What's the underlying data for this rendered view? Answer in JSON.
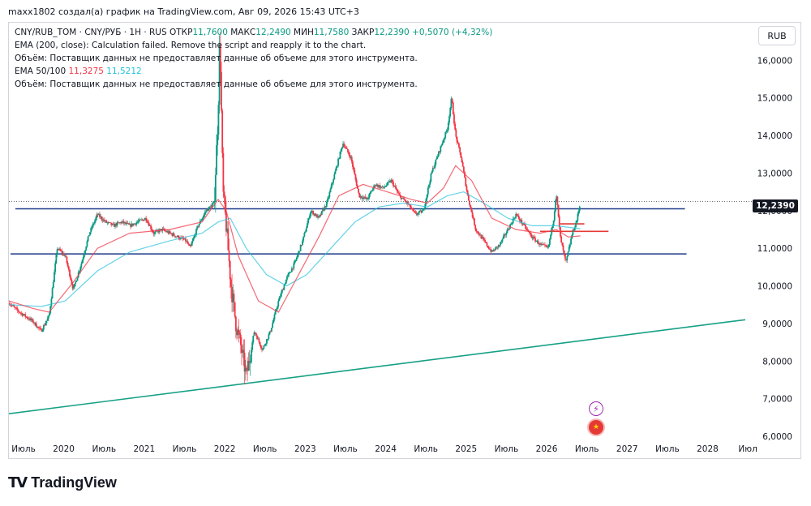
{
  "header": {
    "caption": "maxx1802 создал(а) график на TradingView.com, Авг 09, 2026 15:43 UTC+3"
  },
  "legend": {
    "symbol": "CNY/RUB_TOM · CNY/РУБ · 1H · RUS",
    "open_label": "ОТКР",
    "open": "11,7600",
    "high_label": "МАКС",
    "high": "12,2490",
    "low_label": "МИН",
    "low": "11,7580",
    "close_label": "ЗАКР",
    "close": "12,2390",
    "change": "+0,5070 (+4,32%)",
    "ema200": "EMA (200, close): Calculation failed. Remove the script and reapply it to the chart.",
    "volume1": "Объём: Поставщик данных не предоставляет данные об объеме для этого инструмента.",
    "ema_label": "EMA 50/100",
    "ema50": "11,3275",
    "ema100": "11,5212",
    "volume2": "Объём: Поставщик данных не предоставляет данные об объеме для этого инструмента."
  },
  "currency_button": "RUB",
  "last_price": "12,2390",
  "footer": {
    "logo_mark": "TV",
    "logo_text": "TradingView"
  },
  "colors": {
    "up": "#089981",
    "down": "#f23645",
    "ema50": "#f23645",
    "ema100": "#22c1dc",
    "hline": "#1e3a8a",
    "trend": "#16a085",
    "red_hline": "#e53935"
  },
  "chart_data": {
    "type": "candlestick",
    "ylim": [
      6,
      17
    ],
    "xlim": [
      2019.5,
      2028.65
    ],
    "y_ticks": [
      {
        "value": 6,
        "label": "6,0000"
      },
      {
        "value": 7,
        "label": "7,0000"
      },
      {
        "value": 8,
        "label": "8,0000"
      },
      {
        "value": 9,
        "label": "9,0000"
      },
      {
        "value": 10,
        "label": "10,0000"
      },
      {
        "value": 11,
        "label": "11,0000"
      },
      {
        "value": 12,
        "label": "12,0000"
      },
      {
        "value": 13,
        "label": "13,0000"
      },
      {
        "value": 14,
        "label": "14,0000"
      },
      {
        "value": 15,
        "label": "15,0000"
      },
      {
        "value": 16,
        "label": "16,0000"
      }
    ],
    "x_ticks": [
      {
        "value": 2019.5,
        "label": "Июль"
      },
      {
        "value": 2020,
        "label": "2020"
      },
      {
        "value": 2020.5,
        "label": "Июль"
      },
      {
        "value": 2021,
        "label": "2021"
      },
      {
        "value": 2021.5,
        "label": "Июль"
      },
      {
        "value": 2022,
        "label": "2022"
      },
      {
        "value": 2022.5,
        "label": "Июль"
      },
      {
        "value": 2023,
        "label": "2023"
      },
      {
        "value": 2023.5,
        "label": "Июль"
      },
      {
        "value": 2024,
        "label": "2024"
      },
      {
        "value": 2024.5,
        "label": "Июль"
      },
      {
        "value": 2025,
        "label": "2025"
      },
      {
        "value": 2025.5,
        "label": "Июль"
      },
      {
        "value": 2026,
        "label": "2026"
      },
      {
        "value": 2026.5,
        "label": "Июль"
      },
      {
        "value": 2027,
        "label": "2027"
      },
      {
        "value": 2027.5,
        "label": "Июль"
      },
      {
        "value": 2028,
        "label": "2028"
      },
      {
        "value": 2028.5,
        "label": "Июл"
      }
    ],
    "price_path": [
      [
        2019.5,
        9.55
      ],
      [
        2019.6,
        9.35
      ],
      [
        2019.7,
        9.2
      ],
      [
        2019.8,
        9.05
      ],
      [
        2019.9,
        8.8
      ],
      [
        2020.0,
        9.2
      ],
      [
        2020.1,
        11.0
      ],
      [
        2020.2,
        10.8
      ],
      [
        2020.3,
        9.9
      ],
      [
        2020.4,
        10.6
      ],
      [
        2020.5,
        11.4
      ],
      [
        2020.6,
        11.9
      ],
      [
        2020.7,
        11.7
      ],
      [
        2020.8,
        11.6
      ],
      [
        2020.9,
        11.7
      ],
      [
        2021.0,
        11.6
      ],
      [
        2021.1,
        11.7
      ],
      [
        2021.2,
        11.8
      ],
      [
        2021.3,
        11.4
      ],
      [
        2021.4,
        11.5
      ],
      [
        2021.5,
        11.4
      ],
      [
        2021.6,
        11.3
      ],
      [
        2021.7,
        11.2
      ],
      [
        2021.75,
        11.0
      ],
      [
        2021.85,
        11.6
      ],
      [
        2021.95,
        12.0
      ],
      [
        2022.05,
        12.2
      ],
      [
        2022.1,
        14.6
      ],
      [
        2022.12,
        16.7
      ],
      [
        2022.16,
        12.5
      ],
      [
        2022.2,
        11.6
      ],
      [
        2022.26,
        10.0
      ],
      [
        2022.32,
        9.0
      ],
      [
        2022.38,
        8.4
      ],
      [
        2022.45,
        7.6
      ],
      [
        2022.55,
        8.8
      ],
      [
        2022.65,
        8.3
      ],
      [
        2022.75,
        8.8
      ],
      [
        2022.85,
        9.6
      ],
      [
        2022.95,
        10.2
      ],
      [
        2023.05,
        10.6
      ],
      [
        2023.15,
        11.2
      ],
      [
        2023.25,
        12.0
      ],
      [
        2023.35,
        11.8
      ],
      [
        2023.45,
        12.2
      ],
      [
        2023.55,
        13.0
      ],
      [
        2023.65,
        13.8
      ],
      [
        2023.75,
        13.4
      ],
      [
        2023.85,
        12.4
      ],
      [
        2023.95,
        12.3
      ],
      [
        2024.05,
        12.7
      ],
      [
        2024.15,
        12.6
      ],
      [
        2024.25,
        12.8
      ],
      [
        2024.35,
        12.4
      ],
      [
        2024.45,
        12.2
      ],
      [
        2024.55,
        11.9
      ],
      [
        2024.65,
        12.0
      ],
      [
        2024.75,
        13.0
      ],
      [
        2024.85,
        13.6
      ],
      [
        2024.95,
        14.2
      ],
      [
        2025.0,
        15.0
      ],
      [
        2025.05,
        14.0
      ],
      [
        2025.12,
        13.4
      ],
      [
        2025.2,
        12.4
      ],
      [
        2025.3,
        11.5
      ],
      [
        2025.4,
        11.2
      ],
      [
        2025.5,
        10.9
      ],
      [
        2025.6,
        11.1
      ],
      [
        2025.7,
        11.5
      ],
      [
        2025.8,
        11.9
      ],
      [
        2025.9,
        11.6
      ],
      [
        2026.0,
        11.3
      ],
      [
        2026.1,
        11.1
      ],
      [
        2026.2,
        11.0
      ],
      [
        2026.27,
        11.8
      ],
      [
        2026.3,
        12.5
      ],
      [
        2026.35,
        11.3
      ],
      [
        2026.42,
        10.6
      ],
      [
        2026.5,
        11.4
      ],
      [
        2026.55,
        11.7
      ],
      [
        2026.6,
        12.2
      ]
    ],
    "ema50_path": [
      [
        2019.5,
        9.6
      ],
      [
        2019.8,
        9.4
      ],
      [
        2020.0,
        9.3
      ],
      [
        2020.3,
        10.1
      ],
      [
        2020.6,
        11.0
      ],
      [
        2021.0,
        11.4
      ],
      [
        2021.5,
        11.5
      ],
      [
        2021.9,
        11.7
      ],
      [
        2022.1,
        12.3
      ],
      [
        2022.2,
        12.0
      ],
      [
        2022.35,
        10.8
      ],
      [
        2022.6,
        9.6
      ],
      [
        2022.85,
        9.3
      ],
      [
        2023.1,
        10.3
      ],
      [
        2023.35,
        11.3
      ],
      [
        2023.6,
        12.4
      ],
      [
        2023.9,
        12.7
      ],
      [
        2024.2,
        12.5
      ],
      [
        2024.5,
        12.3
      ],
      [
        2024.7,
        12.2
      ],
      [
        2024.9,
        12.6
      ],
      [
        2025.05,
        13.2
      ],
      [
        2025.25,
        12.8
      ],
      [
        2025.5,
        11.8
      ],
      [
        2025.8,
        11.5
      ],
      [
        2026.1,
        11.4
      ],
      [
        2026.3,
        11.5
      ],
      [
        2026.45,
        11.3
      ],
      [
        2026.6,
        11.33
      ]
    ],
    "ema100_path": [
      [
        2019.5,
        9.5
      ],
      [
        2019.9,
        9.45
      ],
      [
        2020.2,
        9.6
      ],
      [
        2020.6,
        10.4
      ],
      [
        2021.0,
        10.9
      ],
      [
        2021.5,
        11.2
      ],
      [
        2021.9,
        11.4
      ],
      [
        2022.1,
        11.7
      ],
      [
        2022.25,
        11.8
      ],
      [
        2022.45,
        11.0
      ],
      [
        2022.7,
        10.3
      ],
      [
        2022.95,
        10.0
      ],
      [
        2023.2,
        10.3
      ],
      [
        2023.5,
        11.0
      ],
      [
        2023.8,
        11.7
      ],
      [
        2024.1,
        12.1
      ],
      [
        2024.4,
        12.2
      ],
      [
        2024.7,
        12.1
      ],
      [
        2024.95,
        12.4
      ],
      [
        2025.15,
        12.5
      ],
      [
        2025.4,
        12.2
      ],
      [
        2025.7,
        11.8
      ],
      [
        2026.0,
        11.6
      ],
      [
        2026.3,
        11.6
      ],
      [
        2026.6,
        11.52
      ]
    ],
    "support_line": 10.85,
    "resistance_line": 12.05,
    "trendline": [
      [
        2019.5,
        6.6
      ],
      [
        2028.65,
        9.1
      ]
    ],
    "red_hlines": [
      {
        "from": 2026.1,
        "to": 2026.95,
        "y": 11.45
      },
      {
        "from": 2026.35,
        "to": 2026.65,
        "y": 11.65
      }
    ]
  }
}
